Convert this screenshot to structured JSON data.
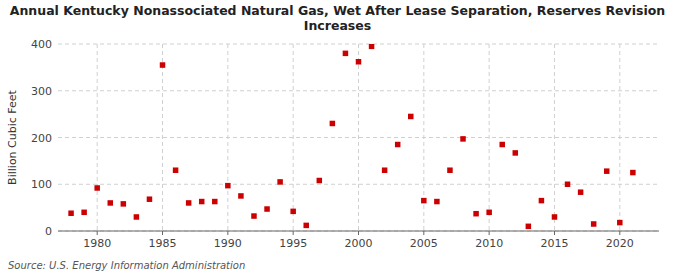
{
  "chart_data": {
    "type": "scatter",
    "title": "Annual Kentucky Nonassociated Natural Gas, Wet After Lease Separation, Reserves Revision\nIncreases",
    "y_label": "Billion Cubic Feet",
    "source": "Source: U.S. Energy Information Administration",
    "x": [
      1978,
      1979,
      1980,
      1981,
      1982,
      1983,
      1984,
      1985,
      1986,
      1987,
      1988,
      1989,
      1990,
      1991,
      1992,
      1993,
      1994,
      1995,
      1996,
      1997,
      1998,
      1999,
      2000,
      2001,
      2002,
      2003,
      2004,
      2005,
      2006,
      2007,
      2008,
      2009,
      2010,
      2011,
      2012,
      2013,
      2014,
      2015,
      2016,
      2017,
      2018,
      2019,
      2020,
      2021
    ],
    "values": [
      38,
      40,
      92,
      60,
      58,
      30,
      68,
      355,
      130,
      60,
      63,
      63,
      97,
      75,
      32,
      47,
      105,
      42,
      12,
      108,
      230,
      380,
      362,
      395,
      130,
      185,
      245,
      65,
      63,
      130,
      197,
      37,
      40,
      185,
      167,
      10,
      65,
      30,
      100,
      83,
      15,
      128,
      18,
      125
    ],
    "color": "#cc0000",
    "marker": "square",
    "xlim": [
      1977,
      2023
    ],
    "ylim": [
      0,
      400
    ],
    "xticks": [
      1980,
      1985,
      1990,
      1995,
      2000,
      2005,
      2010,
      2015,
      2020
    ],
    "yticks": [
      0,
      100,
      200,
      300,
      400
    ],
    "grid": true
  }
}
